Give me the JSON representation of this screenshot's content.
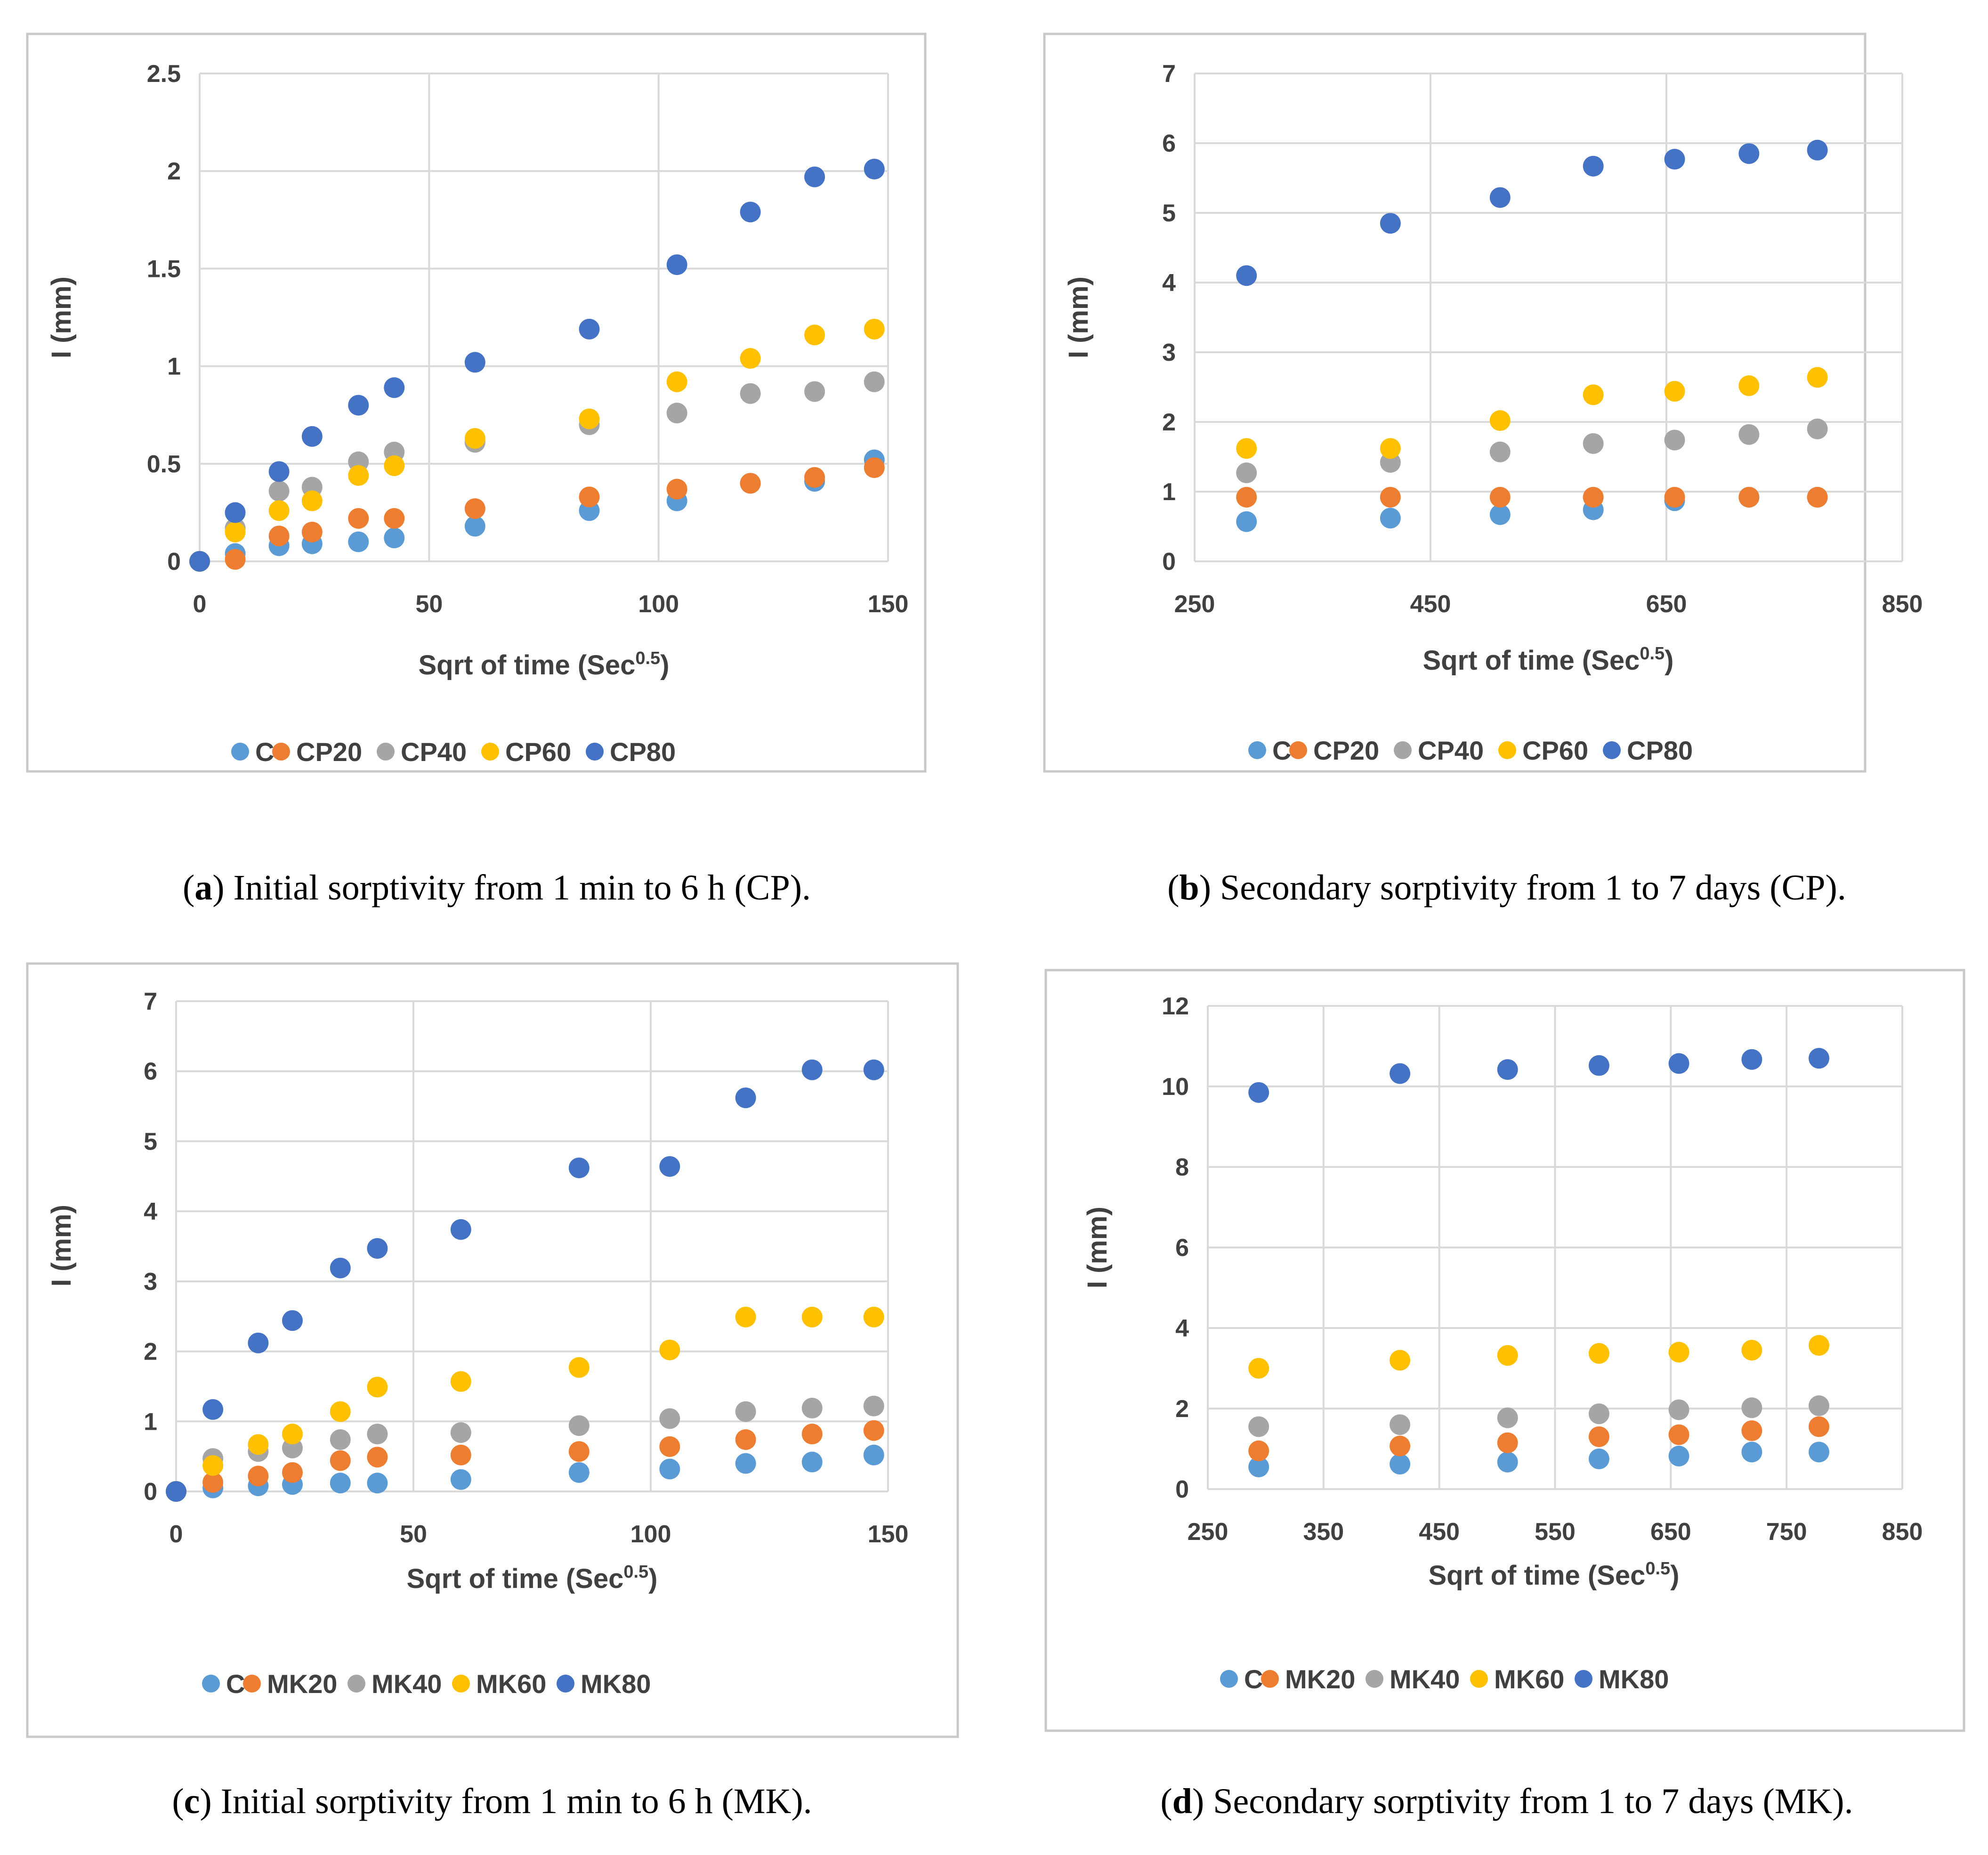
{
  "colors": {
    "C": "#5b9bd5",
    "S20": "#ed7d31",
    "S40": "#a5a5a5",
    "S60": "#ffc000",
    "S80": "#4472c4",
    "grid": "#d9d9d9",
    "frame": "#c8c8c8"
  },
  "chart_data": [
    {
      "id": "a",
      "type": "scatter",
      "xlabel": "Sqrt of time (Sec",
      "xlabel_sup": "0.5",
      "xlabel_close": ")",
      "ylabel": "I (mm)",
      "xlim": [
        0,
        150
      ],
      "ylim": [
        0,
        2.5
      ],
      "xticks": [
        "0",
        "50",
        "100",
        "150"
      ],
      "yticks": [
        "0",
        "0.5",
        "1",
        "1.5",
        "2",
        "2.5"
      ],
      "caption": {
        "letter": "a",
        "text": ") Initial sorptivity from 1 min to 6 h (CP)."
      },
      "legend": [
        "C",
        "CP20",
        "CP40",
        "CP60",
        "CP80"
      ],
      "x": [
        0,
        7.75,
        17.3,
        24.5,
        34.6,
        42.4,
        60,
        84.9,
        104,
        120,
        134,
        147
      ],
      "series": [
        {
          "name": "C",
          "values": [
            0,
            0.04,
            0.08,
            0.09,
            0.1,
            0.12,
            0.18,
            0.26,
            0.31,
            0.4,
            0.41,
            0.52
          ]
        },
        {
          "name": "CP20",
          "values": [
            0,
            0.01,
            0.13,
            0.15,
            0.22,
            0.22,
            0.27,
            0.33,
            0.37,
            0.4,
            0.43,
            0.48
          ]
        },
        {
          "name": "CP40",
          "values": [
            0,
            0.17,
            0.36,
            0.38,
            0.51,
            0.56,
            0.61,
            0.7,
            0.76,
            0.86,
            0.87,
            0.92
          ]
        },
        {
          "name": "CP60",
          "values": [
            0,
            0.15,
            0.26,
            0.31,
            0.44,
            0.49,
            0.63,
            0.73,
            0.92,
            1.04,
            1.16,
            1.19
          ]
        },
        {
          "name": "CP80",
          "values": [
            0,
            0.25,
            0.46,
            0.64,
            0.8,
            0.89,
            1.02,
            1.19,
            1.52,
            1.79,
            1.97,
            2.01
          ]
        }
      ]
    },
    {
      "id": "b",
      "type": "scatter",
      "xlabel": "Sqrt of time (Sec",
      "xlabel_sup": "0.5",
      "xlabel_close": ")",
      "ylabel": "I (mm)",
      "xlim": [
        250,
        850
      ],
      "ylim": [
        0,
        7
      ],
      "xticks": [
        "250",
        "450",
        "650",
        "850"
      ],
      "yticks": [
        "0",
        "1",
        "2",
        "3",
        "4",
        "5",
        "6",
        "7"
      ],
      "caption": {
        "letter": "b",
        "text": ") Secondary sorptivity from 1 to 7 days (CP)."
      },
      "legend": [
        "C",
        "CP20",
        "CP40",
        "CP60",
        "CP80"
      ],
      "x": [
        294,
        416,
        509,
        588,
        657,
        720,
        778
      ],
      "series": [
        {
          "name": "C",
          "values": [
            0.57,
            0.62,
            0.67,
            0.74,
            0.87,
            0.92,
            0.92
          ]
        },
        {
          "name": "CP20",
          "values": [
            0.92,
            0.92,
            0.92,
            0.92,
            0.92,
            0.92,
            0.92
          ]
        },
        {
          "name": "CP40",
          "values": [
            1.27,
            1.42,
            1.57,
            1.69,
            1.74,
            1.82,
            1.9
          ]
        },
        {
          "name": "CP60",
          "values": [
            1.62,
            1.62,
            2.02,
            2.39,
            2.44,
            2.52,
            2.64
          ]
        },
        {
          "name": "CP80",
          "values": [
            4.1,
            4.85,
            5.22,
            5.67,
            5.77,
            5.85,
            5.9
          ]
        }
      ]
    },
    {
      "id": "c",
      "type": "scatter",
      "xlabel": "Sqrt of time (Sec",
      "xlabel_sup": "0.5",
      "xlabel_close": ")",
      "ylabel": "I (mm)",
      "xlim": [
        0,
        150
      ],
      "ylim": [
        0,
        7
      ],
      "xticks": [
        "0",
        "50",
        "100",
        "150"
      ],
      "yticks": [
        "0",
        "1",
        "2",
        "3",
        "4",
        "5",
        "6",
        "7"
      ],
      "caption": {
        "letter": "c",
        "text": ") Initial sorptivity from 1 min to 6 h (MK)."
      },
      "legend": [
        "C",
        "MK20",
        "MK40",
        "MK60",
        "MK80"
      ],
      "x": [
        0,
        7.75,
        17.3,
        24.5,
        34.6,
        42.4,
        60,
        84.9,
        104,
        120,
        134,
        147
      ],
      "series": [
        {
          "name": "C",
          "values": [
            0,
            0.05,
            0.08,
            0.1,
            0.12,
            0.12,
            0.17,
            0.27,
            0.32,
            0.4,
            0.42,
            0.52
          ]
        },
        {
          "name": "MK20",
          "values": [
            0,
            0.13,
            0.22,
            0.27,
            0.44,
            0.49,
            0.52,
            0.57,
            0.64,
            0.74,
            0.82,
            0.87
          ]
        },
        {
          "name": "MK40",
          "values": [
            0,
            0.47,
            0.57,
            0.62,
            0.74,
            0.82,
            0.84,
            0.94,
            1.04,
            1.14,
            1.19,
            1.22
          ]
        },
        {
          "name": "MK60",
          "values": [
            0,
            0.37,
            0.67,
            0.82,
            1.14,
            1.49,
            1.57,
            1.77,
            2.02,
            2.49,
            2.49,
            2.49
          ]
        },
        {
          "name": "MK80",
          "values": [
            0,
            1.17,
            2.12,
            2.44,
            3.19,
            3.47,
            3.74,
            4.62,
            4.64,
            5.62,
            6.02,
            6.02
          ]
        }
      ]
    },
    {
      "id": "d",
      "type": "scatter",
      "xlabel": "Sqrt of time (Sec",
      "xlabel_sup": "0.5",
      "xlabel_close": ")",
      "ylabel": "I (mm)",
      "xlim": [
        250,
        850
      ],
      "ylim": [
        0,
        12
      ],
      "xticks": [
        "250",
        "350",
        "450",
        "550",
        "650",
        "750",
        "850"
      ],
      "yticks": [
        "0",
        "2",
        "4",
        "6",
        "8",
        "10",
        "12"
      ],
      "caption": {
        "letter": "d",
        "text": ") Secondary sorptivity from 1 to 7 days (MK)."
      },
      "legend": [
        "C",
        "MK20",
        "MK40",
        "MK60",
        "MK80"
      ],
      "x": [
        294,
        416,
        509,
        588,
        657,
        720,
        778
      ],
      "series": [
        {
          "name": "C",
          "values": [
            0.55,
            0.62,
            0.67,
            0.75,
            0.82,
            0.92,
            0.92
          ]
        },
        {
          "name": "MK20",
          "values": [
            0.95,
            1.07,
            1.15,
            1.3,
            1.35,
            1.45,
            1.55
          ]
        },
        {
          "name": "MK40",
          "values": [
            1.55,
            1.6,
            1.77,
            1.87,
            1.97,
            2.02,
            2.07
          ]
        },
        {
          "name": "MK60",
          "values": [
            3.0,
            3.2,
            3.32,
            3.37,
            3.4,
            3.45,
            3.57
          ]
        },
        {
          "name": "MK80",
          "values": [
            9.85,
            10.32,
            10.42,
            10.52,
            10.57,
            10.67,
            10.7
          ]
        }
      ]
    }
  ]
}
